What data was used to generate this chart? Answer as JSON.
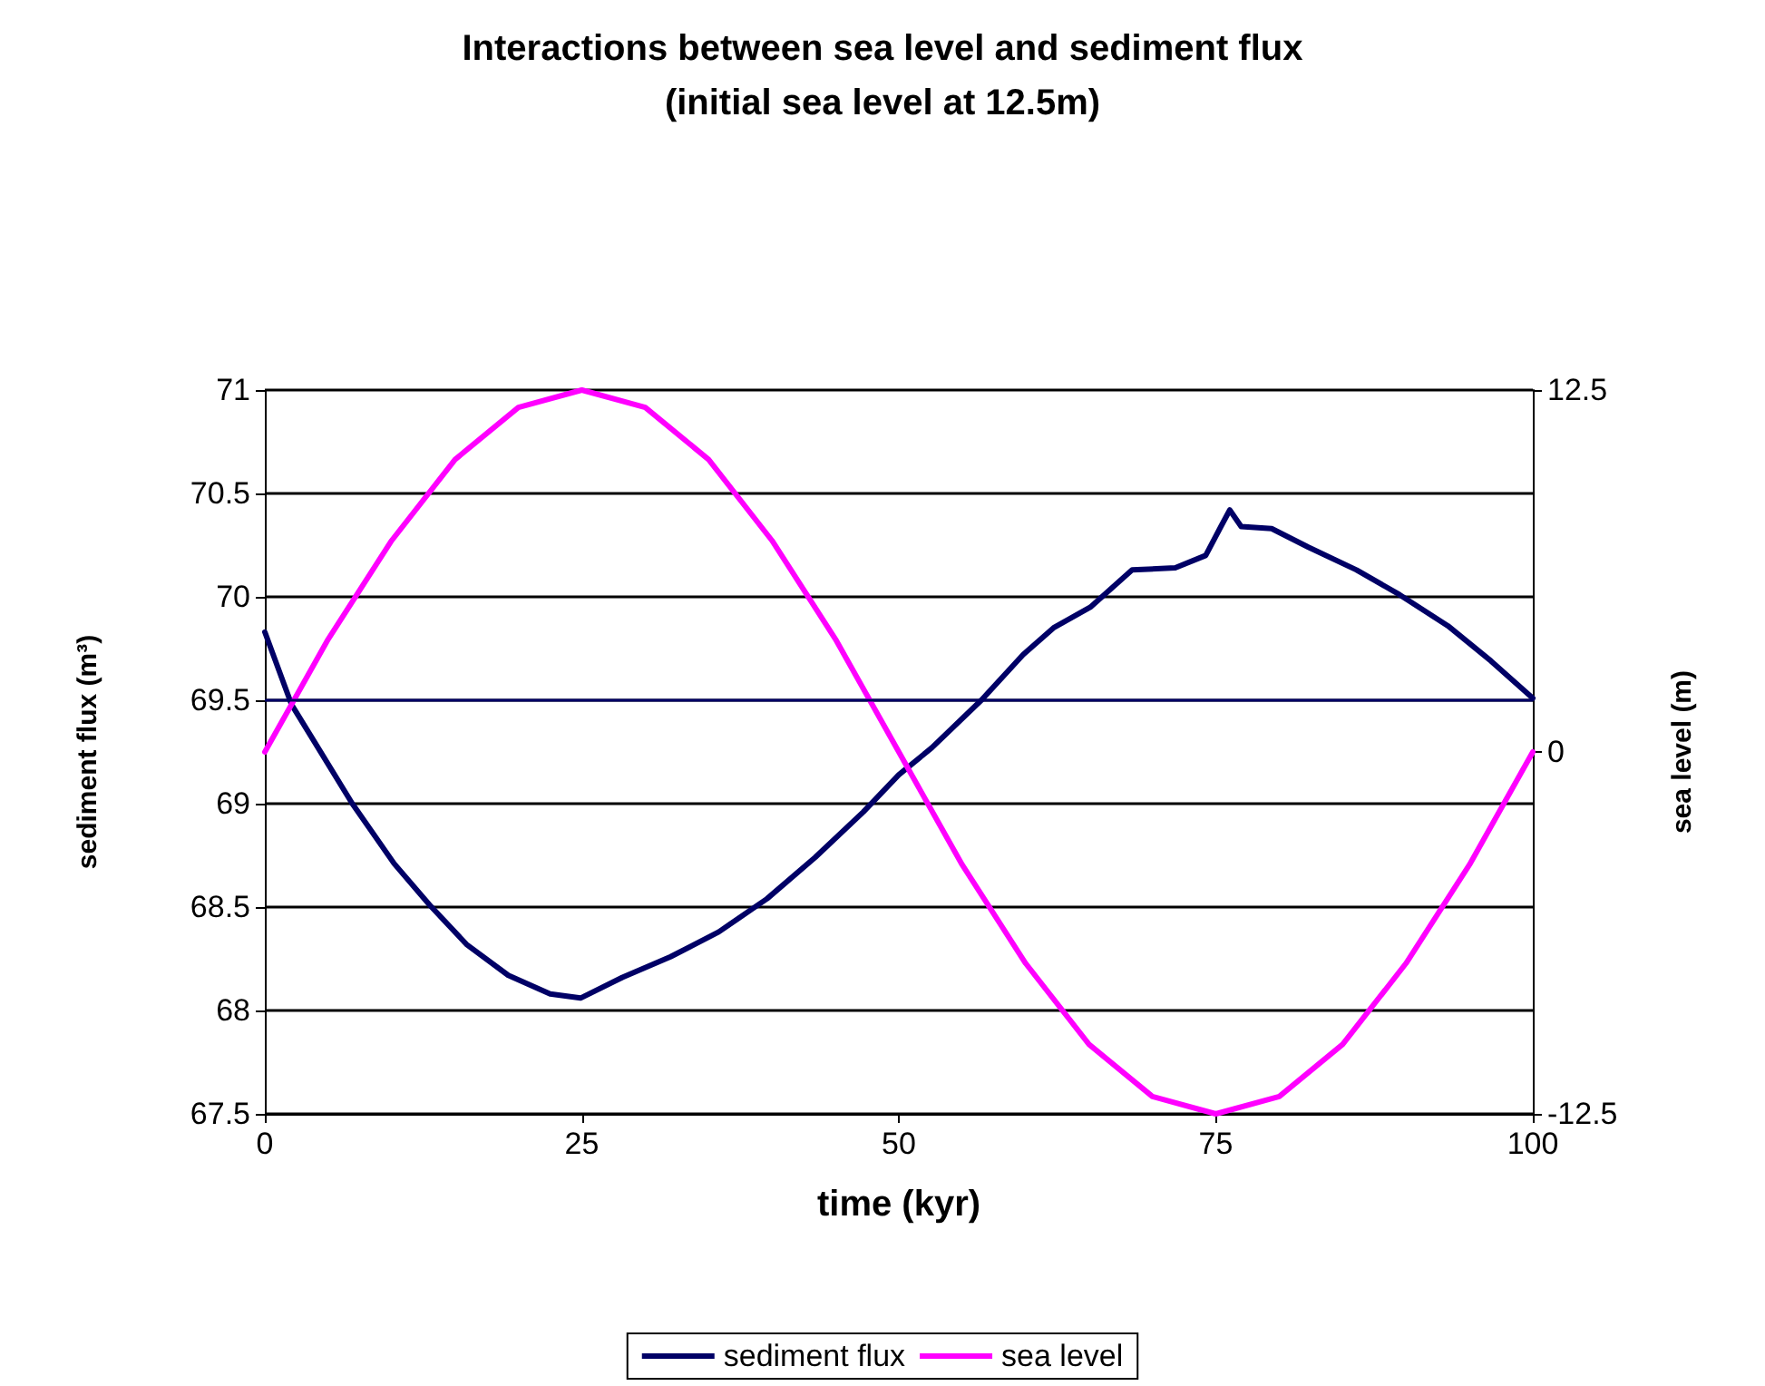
{
  "chart_data": {
    "type": "line",
    "title": "Interactions between sea level and sediment flux",
    "subtitle": "(initial sea level at 12.5m)",
    "xlabel": "time (kyr)",
    "ylabel": "sediment flux (m³)",
    "y2label": "sea level (m)",
    "xlim": [
      0,
      100
    ],
    "xticks": [
      0,
      25,
      50,
      75,
      100
    ],
    "ylim": [
      67.5,
      71
    ],
    "yticks": [
      67.5,
      68,
      68.5,
      69,
      69.5,
      70,
      70.5,
      71
    ],
    "y2lim": [
      -12.5,
      12.5
    ],
    "y2ticks": [
      -12.5,
      0,
      12.5
    ],
    "grid": "y",
    "legend": "bottom",
    "ref_lines": [
      {
        "axis": "y",
        "value": 69.5,
        "color": "#000066"
      }
    ],
    "series": [
      {
        "name": "sediment flux",
        "color": "#000066",
        "x": [
          0,
          2.1,
          4,
          6.9,
          10.2,
          13,
          15.9,
          19.2,
          22.5,
          24.9,
          28.2,
          32,
          35.8,
          39.6,
          43.4,
          47.2,
          50,
          52.6,
          56.5,
          59.8,
          62.2,
          65.1,
          68.4,
          71.8,
          74.2,
          75.4,
          76.1,
          77,
          79.4,
          82.3,
          86.1,
          89.5,
          93.3,
          96.7,
          100
        ],
        "values": [
          69.83,
          69.48,
          69.29,
          69.0,
          68.71,
          68.51,
          68.32,
          68.17,
          68.08,
          68.06,
          68.16,
          68.26,
          68.38,
          68.54,
          68.74,
          68.96,
          69.14,
          69.27,
          69.5,
          69.72,
          69.85,
          69.95,
          70.13,
          70.14,
          70.2,
          70.34,
          70.42,
          70.34,
          70.33,
          70.24,
          70.13,
          70.01,
          69.86,
          69.69,
          69.51
        ]
      },
      {
        "name": "sea level",
        "color": "#ff00ff",
        "axis": "y2",
        "x": [
          0,
          5,
          10,
          15,
          20,
          25,
          30,
          35,
          40,
          45,
          50,
          55,
          60,
          65,
          70,
          75,
          80,
          85,
          90,
          95,
          100
        ],
        "values": [
          0,
          3.9,
          7.3,
          10.1,
          11.9,
          12.5,
          11.9,
          10.1,
          7.3,
          3.9,
          0,
          -3.9,
          -7.3,
          -10.1,
          -11.9,
          -12.5,
          -11.9,
          -10.1,
          -7.3,
          -3.9,
          0
        ]
      }
    ]
  }
}
